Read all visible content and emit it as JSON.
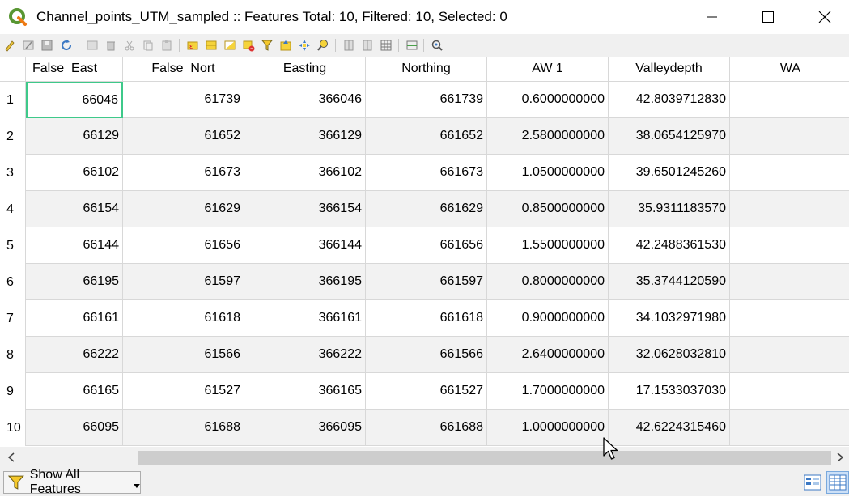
{
  "window": {
    "title": "Channel_points_UTM_sampled :: Features Total: 10, Filtered: 10, Selected: 0",
    "icon": "qgis-logo-icon",
    "controls": [
      "minimize-icon",
      "maximize-icon",
      "close-icon"
    ]
  },
  "toolbar": {
    "icons": [
      "toggle-editing-icon",
      "multi-edit-icon",
      "save-edits-icon",
      "reload-icon",
      "add-feature-icon",
      "delete-feature-icon",
      "cut-icon",
      "copy-icon",
      "paste-icon",
      "select-by-expression-icon",
      "select-all-icon",
      "invert-selection-icon",
      "deselect-all-icon",
      "filter-icon",
      "move-selection-top-icon",
      "pan-to-selection-icon",
      "zoom-to-selection-icon",
      "new-field-icon",
      "delete-field-icon",
      "field-calculator-icon",
      "conditional-formatting-icon",
      "actions-icon"
    ]
  },
  "table": {
    "headers": [
      "False_East",
      "False_Nort",
      "Easting",
      "Northing",
      "AW 1",
      "Valleydepth",
      "WA"
    ],
    "rows": [
      {
        "num": "1",
        "cells": [
          "66046",
          "61739",
          "366046",
          "661739",
          "0.6000000000",
          "42.8039712830",
          ""
        ]
      },
      {
        "num": "2",
        "cells": [
          "66129",
          "61652",
          "366129",
          "661652",
          "2.5800000000",
          "38.0654125970",
          ""
        ]
      },
      {
        "num": "3",
        "cells": [
          "66102",
          "61673",
          "366102",
          "661673",
          "1.0500000000",
          "39.6501245260",
          ""
        ]
      },
      {
        "num": "4",
        "cells": [
          "66154",
          "61629",
          "366154",
          "661629",
          "0.8500000000",
          "35.9311183570",
          ""
        ]
      },
      {
        "num": "5",
        "cells": [
          "66144",
          "61656",
          "366144",
          "661656",
          "1.5500000000",
          "42.2488361530",
          ""
        ]
      },
      {
        "num": "6",
        "cells": [
          "66195",
          "61597",
          "366195",
          "661597",
          "0.8000000000",
          "35.3744120590",
          ""
        ]
      },
      {
        "num": "7",
        "cells": [
          "66161",
          "61618",
          "366161",
          "661618",
          "0.9000000000",
          "34.1032971980",
          ""
        ]
      },
      {
        "num": "8",
        "cells": [
          "66222",
          "61566",
          "366222",
          "661566",
          "2.6400000000",
          "32.0628032810",
          ""
        ]
      },
      {
        "num": "9",
        "cells": [
          "66165",
          "61527",
          "366165",
          "661527",
          "1.7000000000",
          "17.1533037030",
          ""
        ]
      },
      {
        "num": "10",
        "cells": [
          "66095",
          "61688",
          "366095",
          "661688",
          "1.0000000000",
          "42.6224315460",
          ""
        ]
      }
    ]
  },
  "statusbar": {
    "filter_label": "Show All Features",
    "view_buttons": [
      "form-view-icon",
      "table-view-icon"
    ]
  }
}
